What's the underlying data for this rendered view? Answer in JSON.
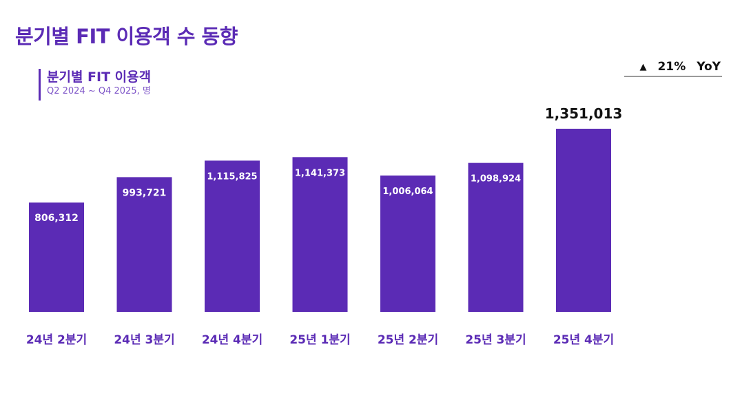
{
  "header": {
    "title": "분기별 FIT 이용객 수 동향",
    "subtitle": "분기별 FIT 이용객",
    "range": "Q2 2024 ~ Q4 2025, 명"
  },
  "yoy": {
    "arrow": "▲",
    "value": "21%",
    "label": "YoY"
  },
  "colors": {
    "bar": "#5b2bb5",
    "accent": "#5b2bb5",
    "label_inside": "#ffffff",
    "label_highlight": "#111111"
  },
  "chart_data": {
    "type": "bar",
    "title": "분기별 FIT 이용객",
    "categories": [
      "24년 2분기",
      "24년 3분기",
      "24년 4분기",
      "25년 1분기",
      "25년 2분기",
      "25년 3분기",
      "25년 4분기"
    ],
    "values": [
      806312,
      993721,
      1115825,
      1141373,
      1006064,
      1098924,
      1351013
    ],
    "value_labels": [
      "806,312",
      "993,721",
      "1,115,825",
      "1,141,373",
      "1,006,064",
      "1,098,924",
      "1,351,013"
    ],
    "highlight_index": 6,
    "xlabel": "",
    "ylabel": "",
    "grid": false,
    "ylim": [
      0,
      1351013
    ]
  }
}
